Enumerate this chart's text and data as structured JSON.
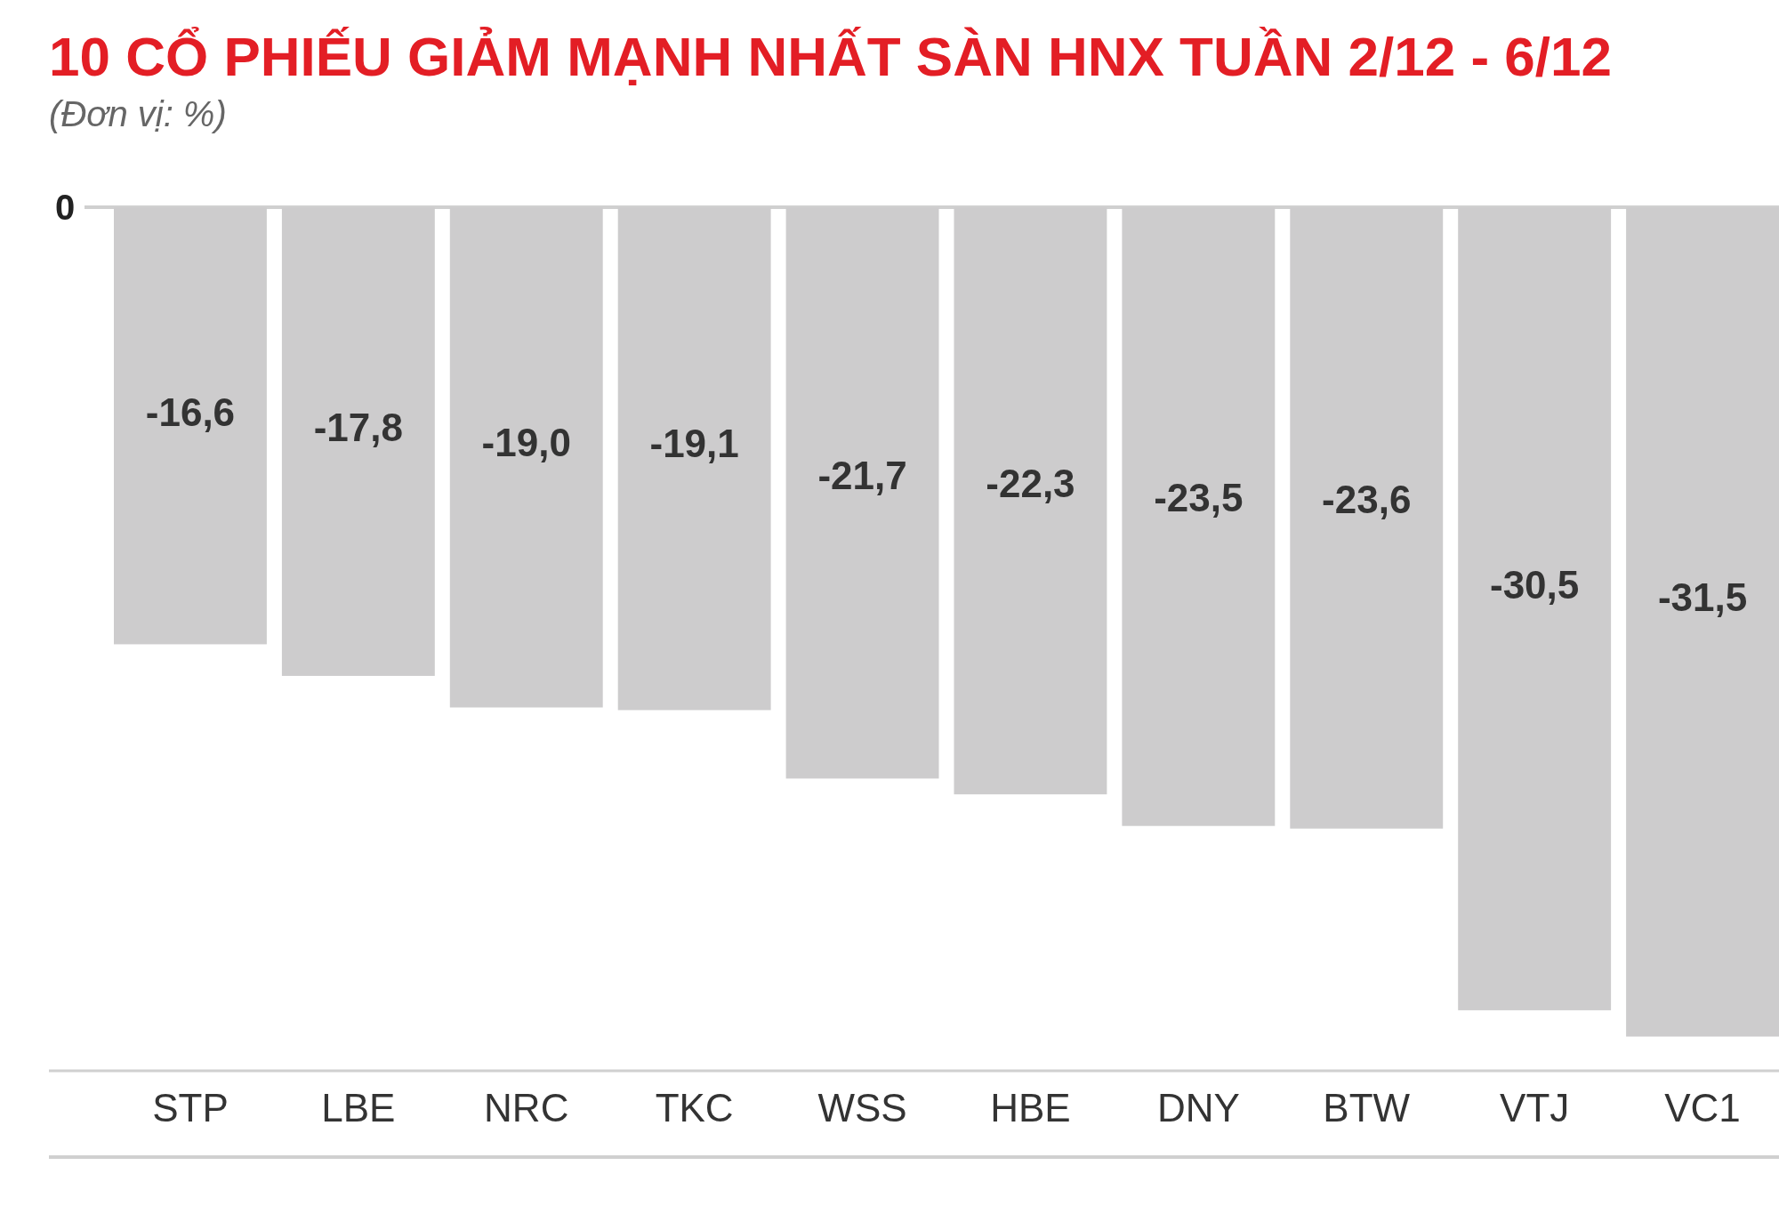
{
  "chart_data": {
    "type": "bar",
    "title": "10 CỔ PHIẾU GIẢM MẠNH NHẤT SÀN HNX TUẦN 2/12 - 6/12",
    "subtitle": "(Đơn vị: %)",
    "categories": [
      "STP",
      "LBE",
      "NRC",
      "TKC",
      "WSS",
      "HBE",
      "DNY",
      "BTW",
      "VTJ",
      "VC1"
    ],
    "values": [
      -16.6,
      -17.8,
      -19.0,
      -19.1,
      -21.7,
      -22.3,
      -23.5,
      -23.6,
      -30.5,
      -31.5
    ],
    "value_labels": [
      "-16,6",
      "-17,8",
      "-19,0",
      "-19,1",
      "-21,7",
      "-22,3",
      "-23,5",
      "-23,6",
      "-30,5",
      "-31,5"
    ],
    "color": "#cdcccd",
    "ylim": [
      -32.8,
      0
    ],
    "ref_lines": [
      {
        "axis": "y",
        "value": 0,
        "label": "0",
        "color": "#d0d0d0"
      }
    ]
  }
}
